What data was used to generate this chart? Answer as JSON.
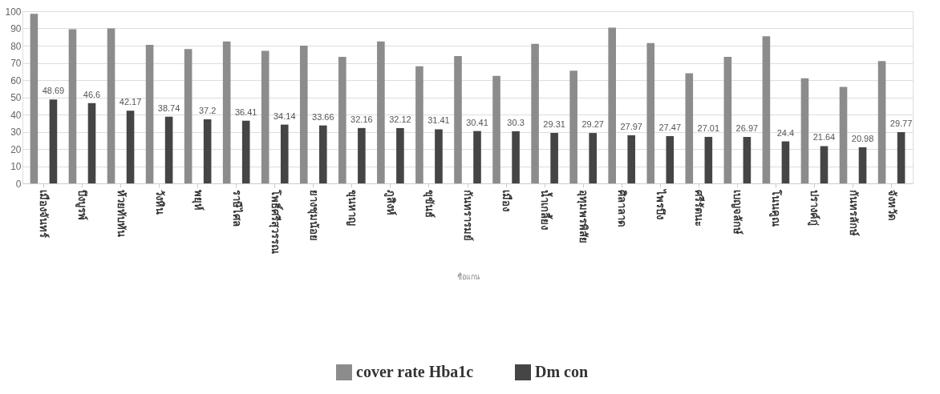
{
  "chart_data": {
    "type": "bar",
    "xlabel": "ชื่อแกน",
    "categories": [
      "เมืองจันทร์",
      "บึงบูรพ์",
      "ห้วยทับทัน",
      "วังหิน",
      "พยุห์",
      "ราษีไศล",
      "โพธิ์ศรีสุวรรณ",
      "ยางชุมน้อย",
      "ขุนหาญ",
      "ภูสิงห์",
      "ขุขันธ์",
      "กันทรารมย์",
      "เมือง",
      "น้ำเกลี้ยง",
      "อุทุมพรพิสัย",
      "ศิลาลาด",
      "ไพรบึง",
      "ศรีรัตนะ",
      "เบญจลักษ์",
      "โนนคูณ",
      "ปรางค์กู่",
      "กันทรลักษ์",
      "จังหวัด"
    ],
    "series": [
      {
        "name": "cover rate Hba1c",
        "color": "#8c8c8c",
        "values": [
          98.5,
          89.5,
          90,
          80.5,
          78,
          82.5,
          77,
          80,
          73.5,
          82.5,
          68,
          74,
          62.5,
          81,
          65.5,
          90.5,
          81.5,
          64,
          73.5,
          85.5,
          61,
          56,
          71
        ]
      },
      {
        "name": "Dm con",
        "color": "#454545",
        "values": [
          48.69,
          46.6,
          42.17,
          38.74,
          37.2,
          36.41,
          34.14,
          33.66,
          32.16,
          32.12,
          31.41,
          30.41,
          30.3,
          29.31,
          29.27,
          27.97,
          27.47,
          27.01,
          26.97,
          24.4,
          21.64,
          20.98,
          29.77
        ],
        "value_labels": [
          "48.69",
          "46.6",
          "42.17",
          "38.74",
          "37.2",
          "36.41",
          "34.14",
          "33.66",
          "32.16",
          "32.12",
          "31.41",
          "30.41",
          "30.3",
          "29.31",
          "29.27",
          "27.97",
          "27.47",
          "27.01",
          "26.97",
          "24.4",
          "21.64",
          "20.98",
          "29.77"
        ]
      }
    ],
    "ylim": [
      0,
      100
    ],
    "yticks": [
      0,
      10,
      20,
      30,
      40,
      50,
      60,
      70,
      80,
      90,
      100
    ],
    "grid": "y",
    "legend": "bottom"
  }
}
